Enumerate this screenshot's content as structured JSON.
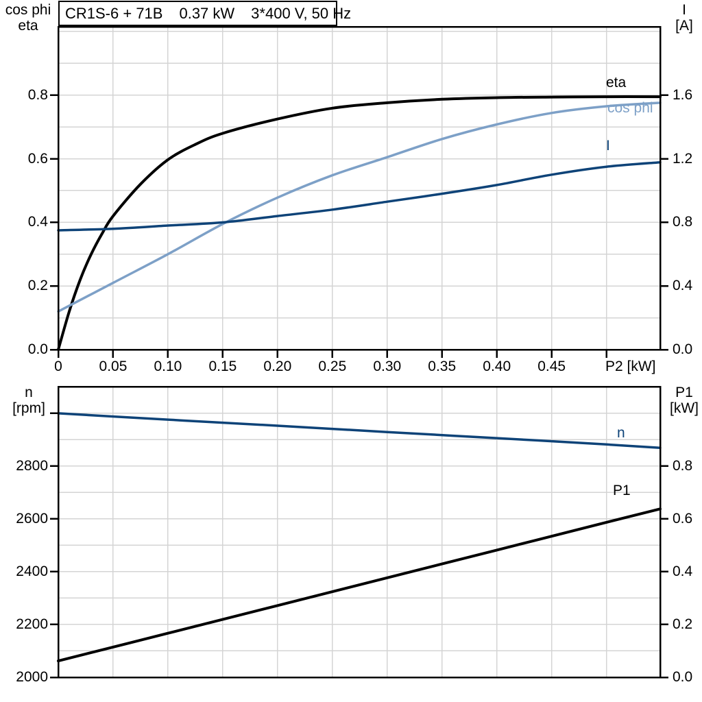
{
  "colors": {
    "curve_black": "#000000",
    "curve_dark_blue": "#0e4378",
    "curve_light_blue": "#7da0c7",
    "grid": "#d4d4d4",
    "axis": "#000000"
  },
  "chart_data": [
    {
      "id": "motor-efficiency-chart",
      "type": "line",
      "title": "CR1S-6 + 71B  0.37 kW  3*400 V, 50 Hz",
      "title_parts": {
        "model": "CR1S-6 + 71B",
        "power": "0.37 kW",
        "supply": "3*400 V, 50 Hz"
      },
      "legend_position": "end-of-line labels",
      "grid": "on",
      "x_axis": {
        "label": "P2 [kW]",
        "min": 0,
        "max": 0.549,
        "tick_values": [
          0,
          0.05,
          0.1,
          0.15,
          0.2,
          0.25,
          0.3,
          0.35,
          0.4,
          0.45
        ],
        "tick_labels": [
          "0",
          "0.05",
          "0.10",
          "0.15",
          "0.20",
          "0.25",
          "0.30",
          "0.35",
          "0.40",
          "0.45"
        ],
        "extra_tick_values": [
          0.5
        ],
        "grid_values": [
          0.05,
          0.1,
          0.15,
          0.2,
          0.25,
          0.3,
          0.35,
          0.4,
          0.45,
          0.5
        ]
      },
      "y_left": {
        "title_line1": "cos phi",
        "title_line2": "eta",
        "min": 0,
        "max": 1.015,
        "tick_values": [
          0.8,
          0.6,
          0.4,
          0.2,
          0.0
        ],
        "tick_labels": [
          "0.8",
          "0.6",
          "0.4",
          "0.2",
          "0.0"
        ],
        "extra_tick_values": [],
        "grid_values": [
          0.1,
          0.2,
          0.3,
          0.4,
          0.5,
          0.6,
          0.7,
          0.8,
          0.9,
          1.0
        ]
      },
      "y_right": {
        "title_line1": "I",
        "title_line2": "[A]",
        "min": 0,
        "max": 2.03,
        "tick_values": [
          1.6,
          1.2,
          0.8,
          0.4,
          0.0
        ],
        "tick_labels": [
          "1.6",
          "1.2",
          "0.8",
          "0.4",
          "0.0"
        ],
        "extra_tick_values": []
      },
      "series": [
        {
          "name": "eta",
          "label": "eta",
          "axis": "left",
          "color_key": "curve_black",
          "width": 4,
          "x": [
            0,
            0.01,
            0.02,
            0.03,
            0.04,
            0.05,
            0.075,
            0.1,
            0.125,
            0.15,
            0.2,
            0.25,
            0.3,
            0.35,
            0.4,
            0.45,
            0.5,
            0.549
          ],
          "y": [
            0,
            0.12,
            0.22,
            0.3,
            0.365,
            0.42,
            0.52,
            0.597,
            0.645,
            0.68,
            0.725,
            0.759,
            0.776,
            0.787,
            0.792,
            0.794,
            0.795,
            0.795
          ]
        },
        {
          "name": "cos phi",
          "label": "cos phi",
          "axis": "left",
          "color_key": "curve_light_blue",
          "width": 3.5,
          "x": [
            0,
            0.05,
            0.1,
            0.15,
            0.2,
            0.25,
            0.3,
            0.35,
            0.4,
            0.45,
            0.5,
            0.549
          ],
          "y": [
            0.12,
            0.21,
            0.3,
            0.395,
            0.478,
            0.548,
            0.605,
            0.662,
            0.708,
            0.744,
            0.765,
            0.776
          ]
        },
        {
          "name": "I",
          "label": "I",
          "axis": "right",
          "color_key": "curve_dark_blue",
          "width": 3.5,
          "x": [
            0,
            0.05,
            0.1,
            0.15,
            0.2,
            0.25,
            0.3,
            0.35,
            0.4,
            0.45,
            0.5,
            0.549
          ],
          "y": [
            0.75,
            0.76,
            0.78,
            0.8,
            0.84,
            0.88,
            0.93,
            0.98,
            1.035,
            1.1,
            1.15,
            1.178
          ]
        }
      ]
    },
    {
      "id": "speed-power-chart",
      "type": "line",
      "title": "",
      "legend_position": "end-of-line labels",
      "grid": "on",
      "x_axis": {
        "label": "",
        "min": 0,
        "max": 0.549,
        "tick_values": [],
        "tick_labels": [],
        "extra_tick_values": [],
        "grid_values": [
          0.05,
          0.1,
          0.15,
          0.2,
          0.25,
          0.3,
          0.35,
          0.4,
          0.45,
          0.5
        ]
      },
      "y_left": {
        "title_line1": "n",
        "title_line2": "[rpm]",
        "min": 2000,
        "max": 3101,
        "tick_values": [
          2800,
          2600,
          2400,
          2200,
          2000
        ],
        "tick_labels": [
          "2800",
          "2600",
          "2400",
          "2200",
          "2000"
        ],
        "extra_tick_values": [
          3000
        ],
        "grid_values": [
          2100,
          2200,
          2300,
          2400,
          2500,
          2600,
          2700,
          2800,
          2900,
          3000
        ]
      },
      "y_right": {
        "title_line1": "P1",
        "title_line2": "[kW]",
        "min": 0,
        "max": 1.101,
        "tick_values": [
          0.8,
          0.6,
          0.4,
          0.2,
          0.0
        ],
        "tick_labels": [
          "0.8",
          "0.6",
          "0.4",
          "0.2",
          "0.0"
        ],
        "extra_tick_values": []
      },
      "series": [
        {
          "name": "n",
          "label": "n",
          "axis": "left",
          "color_key": "curve_dark_blue",
          "width": 3.5,
          "x": [
            0,
            0.1,
            0.2,
            0.3,
            0.4,
            0.5,
            0.549
          ],
          "y": [
            3000,
            2976,
            2953,
            2929,
            2906,
            2882,
            2869
          ]
        },
        {
          "name": "P1",
          "label": "P1",
          "axis": "right",
          "color_key": "curve_black",
          "width": 4,
          "x": [
            0,
            0.1,
            0.2,
            0.3,
            0.4,
            0.5,
            0.549
          ],
          "y": [
            0.062,
            0.167,
            0.272,
            0.377,
            0.482,
            0.587,
            0.638
          ]
        }
      ]
    }
  ]
}
